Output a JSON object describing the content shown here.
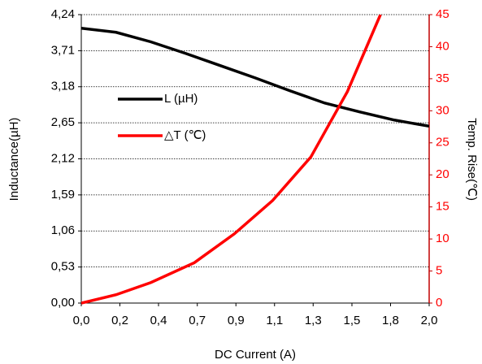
{
  "chart_data": {
    "type": "line",
    "x_label": "DC Current (A)",
    "y_label": "Inductance(µH)",
    "y2_label": "Temp. Rise(℃)",
    "xlim": [
      0,
      2
    ],
    "xticks": [
      {
        "value": 0,
        "label": "0,0"
      },
      {
        "value": 0.222,
        "label": "0,2"
      },
      {
        "value": 0.444,
        "label": "0,4"
      },
      {
        "value": 0.667,
        "label": "0,7"
      },
      {
        "value": 0.889,
        "label": "0,9"
      },
      {
        "value": 1.111,
        "label": "1,1"
      },
      {
        "value": 1.333,
        "label": "1,3"
      },
      {
        "value": 1.556,
        "label": "1,5"
      },
      {
        "value": 1.778,
        "label": "1,8"
      },
      {
        "value": 2,
        "label": "2,0"
      }
    ],
    "ylim": [
      0,
      4.24
    ],
    "yticks": [
      {
        "value": 0,
        "label": "0,00"
      },
      {
        "value": 0.53,
        "label": "0,53"
      },
      {
        "value": 1.06,
        "label": "1,06"
      },
      {
        "value": 1.59,
        "label": "1,59"
      },
      {
        "value": 2.12,
        "label": "2,12"
      },
      {
        "value": 2.65,
        "label": "2,65"
      },
      {
        "value": 3.18,
        "label": "3,18"
      },
      {
        "value": 3.71,
        "label": "3,71"
      },
      {
        "value": 4.24,
        "label": "4,24"
      }
    ],
    "y2lim": [
      0,
      45
    ],
    "y2ticks": [
      0,
      5,
      10,
      15,
      20,
      25,
      30,
      35,
      40,
      45
    ],
    "y2_color": "#ff0000",
    "grid": true,
    "series": [
      {
        "name": "L (µH)",
        "color": "#000000",
        "x": [
          0,
          0.2,
          0.4,
          0.6,
          0.8,
          1.0,
          1.2,
          1.4,
          1.6,
          1.8,
          2.0
        ],
        "values": [
          4.04,
          3.98,
          3.84,
          3.67,
          3.49,
          3.31,
          3.12,
          2.94,
          2.81,
          2.69,
          2.6
        ]
      },
      {
        "name": "△T (℃)",
        "color": "#ff0000",
        "axis": "y2",
        "x": [
          0,
          0.2,
          0.4,
          0.65,
          0.88,
          1.1,
          1.32,
          1.53,
          1.72
        ],
        "values": [
          0,
          1.3,
          3.2,
          6.3,
          10.8,
          16,
          22.8,
          33,
          45
        ]
      }
    ]
  }
}
